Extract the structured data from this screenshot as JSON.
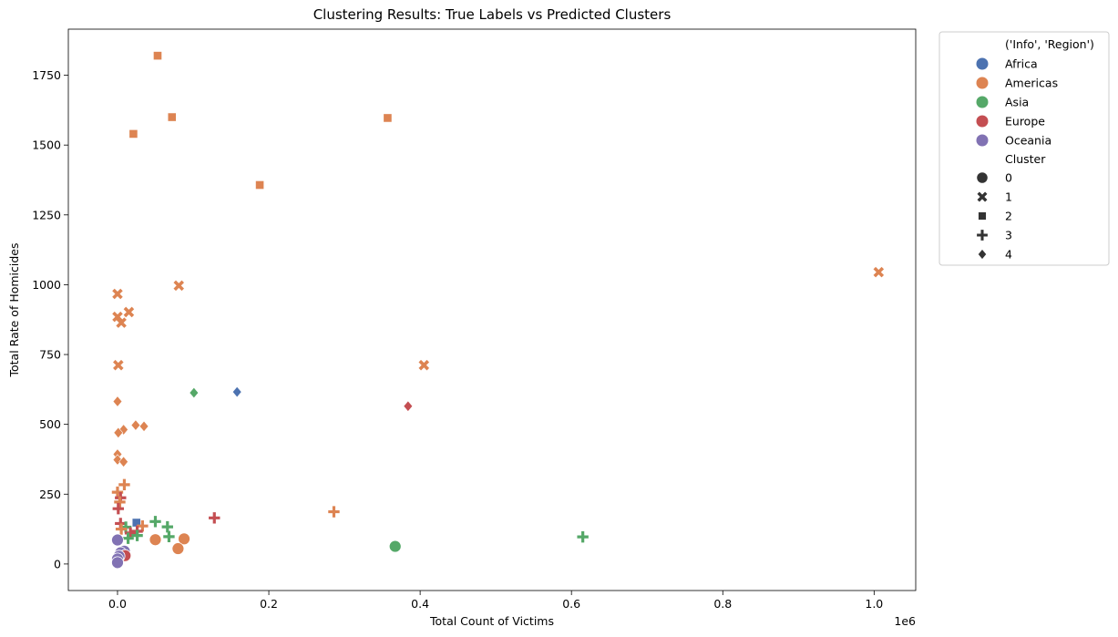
{
  "chart_data": {
    "type": "scatter",
    "title": "Clustering Results: True Labels vs Predicted Clusters",
    "xlabel": "Total Count of Victims",
    "ylabel": "Total Rate of Homicides",
    "x_offset_text": "1e6",
    "xlim": [
      -0.065,
      1.055
    ],
    "ylim": [
      -95,
      1915
    ],
    "x_ticks": [
      0.0,
      0.2,
      0.4,
      0.6,
      0.8,
      1.0
    ],
    "x_tick_labels": [
      "0.0",
      "0.2",
      "0.4",
      "0.6",
      "0.8",
      "1.0"
    ],
    "y_ticks": [
      0,
      250,
      500,
      750,
      1000,
      1250,
      1500,
      1750
    ],
    "y_tick_labels": [
      "0",
      "250",
      "500",
      "750",
      "1000",
      "1250",
      "1500",
      "1750"
    ],
    "grid": false,
    "legend": {
      "placement": "outside-right",
      "hue_title": "('Info', 'Region')",
      "style_title": "Cluster",
      "regions": [
        {
          "name": "Africa",
          "color": "#4c72b0"
        },
        {
          "name": "Americas",
          "color": "#dd8452"
        },
        {
          "name": "Asia",
          "color": "#55a868"
        },
        {
          "name": "Europe",
          "color": "#c44e52"
        },
        {
          "name": "Oceania",
          "color": "#8172b3"
        }
      ],
      "clusters": [
        {
          "label": "0",
          "marker": "circle"
        },
        {
          "label": "1",
          "marker": "x"
        },
        {
          "label": "2",
          "marker": "square"
        },
        {
          "label": "3",
          "marker": "plus"
        },
        {
          "label": "4",
          "marker": "diamond"
        }
      ]
    },
    "points": [
      {
        "x": 0.053,
        "y": 1820,
        "region": "Americas",
        "cluster": 2
      },
      {
        "x": 0.072,
        "y": 1600,
        "region": "Americas",
        "cluster": 2
      },
      {
        "x": 0.357,
        "y": 1597,
        "region": "Americas",
        "cluster": 2
      },
      {
        "x": 0.021,
        "y": 1540,
        "region": "Americas",
        "cluster": 2
      },
      {
        "x": 0.188,
        "y": 1357,
        "region": "Americas",
        "cluster": 2
      },
      {
        "x": 0.025,
        "y": 148,
        "region": "Africa",
        "cluster": 2
      },
      {
        "x": 1.006,
        "y": 1045,
        "region": "Americas",
        "cluster": 1
      },
      {
        "x": 0.081,
        "y": 997,
        "region": "Americas",
        "cluster": 1
      },
      {
        "x": 0.0,
        "y": 967,
        "region": "Americas",
        "cluster": 1
      },
      {
        "x": 0.015,
        "y": 902,
        "region": "Americas",
        "cluster": 1
      },
      {
        "x": 0.0,
        "y": 885,
        "region": "Americas",
        "cluster": 1
      },
      {
        "x": 0.005,
        "y": 864,
        "region": "Americas",
        "cluster": 1
      },
      {
        "x": 0.001,
        "y": 712,
        "region": "Americas",
        "cluster": 1
      },
      {
        "x": 0.405,
        "y": 712,
        "region": "Americas",
        "cluster": 1
      },
      {
        "x": 0.158,
        "y": 616,
        "region": "Africa",
        "cluster": 4
      },
      {
        "x": 0.101,
        "y": 613,
        "region": "Asia",
        "cluster": 4
      },
      {
        "x": 0.384,
        "y": 565,
        "region": "Europe",
        "cluster": 4
      },
      {
        "x": 0.0,
        "y": 582,
        "region": "Americas",
        "cluster": 4
      },
      {
        "x": 0.024,
        "y": 497,
        "region": "Americas",
        "cluster": 4
      },
      {
        "x": 0.035,
        "y": 493,
        "region": "Americas",
        "cluster": 4
      },
      {
        "x": 0.008,
        "y": 481,
        "region": "Americas",
        "cluster": 4
      },
      {
        "x": 0.001,
        "y": 470,
        "region": "Americas",
        "cluster": 4
      },
      {
        "x": 0.0,
        "y": 393,
        "region": "Americas",
        "cluster": 4
      },
      {
        "x": 0.0,
        "y": 373,
        "region": "Americas",
        "cluster": 4
      },
      {
        "x": 0.008,
        "y": 366,
        "region": "Americas",
        "cluster": 4
      },
      {
        "x": 0.009,
        "y": 284,
        "region": "Americas",
        "cluster": 3
      },
      {
        "x": 0.0,
        "y": 257,
        "region": "Americas",
        "cluster": 3
      },
      {
        "x": 0.004,
        "y": 237,
        "region": "Europe",
        "cluster": 3
      },
      {
        "x": 0.003,
        "y": 222,
        "region": "Americas",
        "cluster": 3
      },
      {
        "x": 0.001,
        "y": 198,
        "region": "Europe",
        "cluster": 3
      },
      {
        "x": 0.286,
        "y": 187,
        "region": "Americas",
        "cluster": 3
      },
      {
        "x": 0.128,
        "y": 165,
        "region": "Europe",
        "cluster": 3
      },
      {
        "x": 0.05,
        "y": 152,
        "region": "Asia",
        "cluster": 3
      },
      {
        "x": 0.004,
        "y": 145,
        "region": "Europe",
        "cluster": 3
      },
      {
        "x": 0.033,
        "y": 136,
        "region": "Americas",
        "cluster": 3
      },
      {
        "x": 0.011,
        "y": 132,
        "region": "Asia",
        "cluster": 3
      },
      {
        "x": 0.066,
        "y": 133,
        "region": "Asia",
        "cluster": 3
      },
      {
        "x": 0.005,
        "y": 125,
        "region": "Americas",
        "cluster": 3
      },
      {
        "x": 0.026,
        "y": 117,
        "region": "Europe",
        "cluster": 3
      },
      {
        "x": 0.017,
        "y": 111,
        "region": "Europe",
        "cluster": 3
      },
      {
        "x": 0.026,
        "y": 102,
        "region": "Asia",
        "cluster": 3
      },
      {
        "x": 0.068,
        "y": 98,
        "region": "Asia",
        "cluster": 3
      },
      {
        "x": 0.615,
        "y": 97,
        "region": "Asia",
        "cluster": 3
      },
      {
        "x": 0.014,
        "y": 92,
        "region": "Asia",
        "cluster": 3
      },
      {
        "x": 0.367,
        "y": 63,
        "region": "Asia",
        "cluster": 0
      },
      {
        "x": 0.088,
        "y": 90,
        "region": "Americas",
        "cluster": 0
      },
      {
        "x": 0.05,
        "y": 87,
        "region": "Americas",
        "cluster": 0
      },
      {
        "x": 0.08,
        "y": 55,
        "region": "Americas",
        "cluster": 0
      },
      {
        "x": 0.0,
        "y": 86,
        "region": "Oceania",
        "cluster": 0
      },
      {
        "x": 0.009,
        "y": 46,
        "region": "Oceania",
        "cluster": 0
      },
      {
        "x": 0.004,
        "y": 40,
        "region": "Oceania",
        "cluster": 0
      },
      {
        "x": 0.01,
        "y": 30,
        "region": "Europe",
        "cluster": 0
      },
      {
        "x": 0.002,
        "y": 28,
        "region": "Oceania",
        "cluster": 0
      },
      {
        "x": 0.0,
        "y": 18,
        "region": "Oceania",
        "cluster": 0
      },
      {
        "x": 0.0,
        "y": 5,
        "region": "Oceania",
        "cluster": 0
      }
    ]
  }
}
